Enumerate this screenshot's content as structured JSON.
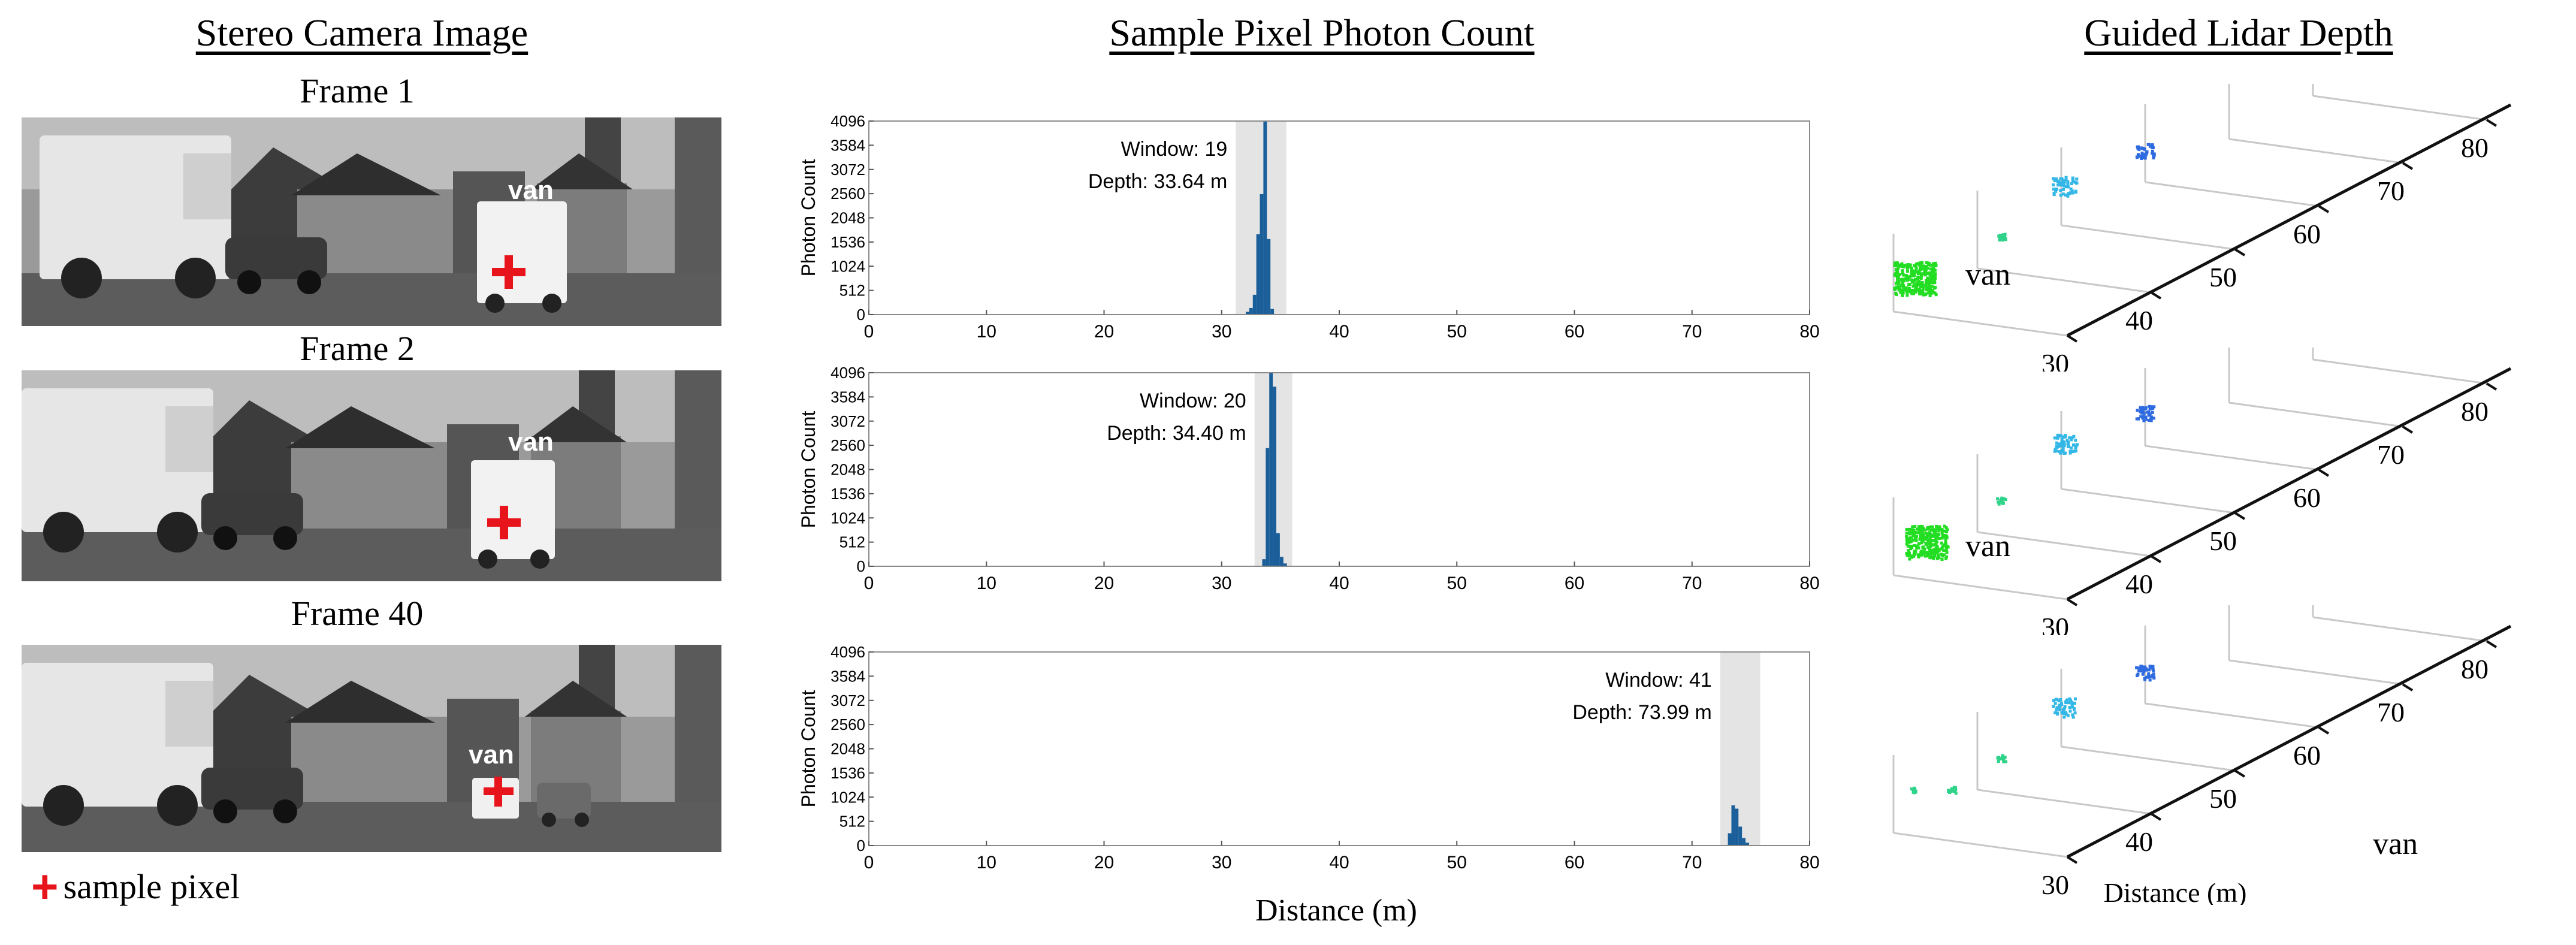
{
  "titles": {
    "stereo": "Stereo Camera Image",
    "photon": "Sample Pixel Photon Count",
    "lidar": "Guided Lidar Depth"
  },
  "frames": [
    {
      "label": "Frame 1",
      "van_label": "van",
      "window_text": "Window: 19",
      "depth_text": "Depth: 33.64 m"
    },
    {
      "label": "Frame 2",
      "van_label": "van",
      "window_text": "Window: 20",
      "depth_text": "Depth: 34.40 m"
    },
    {
      "label": "Frame 40",
      "van_label": "van",
      "window_text": "Window: 41",
      "depth_text": "Depth: 73.99 m"
    }
  ],
  "legend": {
    "label": "sample pixel"
  },
  "colors": {
    "sample_pixel_marker": "#e8141c",
    "histogram_bar": "#1a5e9a",
    "window_shade": "#e4e4e4"
  },
  "lidar_axis_label": "Distance (m)",
  "lidar_ticks": [
    "30",
    "40",
    "50",
    "60",
    "70",
    "80"
  ],
  "lidar_van_label": "van",
  "chart_data": [
    {
      "type": "bar",
      "title": "Frame 1",
      "xlabel": "",
      "ylabel": "Photon Count",
      "xlim": [
        0,
        80
      ],
      "ylim": [
        0,
        4096
      ],
      "xticks": [
        "0",
        "10",
        "20",
        "30",
        "40",
        "50",
        "60",
        "70",
        "80"
      ],
      "yticks": [
        "0",
        "512",
        "1024",
        "1536",
        "2048",
        "2560",
        "3072",
        "3584",
        "4096"
      ],
      "window": [
        31.2,
        35.5
      ],
      "x": [
        32.2,
        32.5,
        32.8,
        33.1,
        33.4,
        33.7,
        34.0,
        34.3
      ],
      "values": [
        60,
        140,
        420,
        1700,
        2550,
        4096,
        1600,
        120
      ],
      "annotation": [
        "Window: 19",
        "Depth: 33.64 m"
      ]
    },
    {
      "type": "bar",
      "title": "Frame 2",
      "xlabel": "",
      "ylabel": "Photon Count",
      "xlim": [
        0,
        80
      ],
      "ylim": [
        0,
        4096
      ],
      "xticks": [
        "0",
        "10",
        "20",
        "30",
        "40",
        "50",
        "60",
        "70",
        "80"
      ],
      "yticks": [
        "0",
        "512",
        "1024",
        "1536",
        "2048",
        "2560",
        "3072",
        "3584",
        "4096"
      ],
      "window": [
        32.8,
        36.0
      ],
      "x": [
        33.6,
        33.9,
        34.2,
        34.5,
        34.8,
        35.1,
        35.4
      ],
      "values": [
        150,
        2500,
        4096,
        3800,
        700,
        200,
        60
      ],
      "annotation": [
        "Window: 20",
        "Depth: 34.40 m"
      ]
    },
    {
      "type": "bar",
      "title": "Frame 40",
      "xlabel": "Distance (m)",
      "ylabel": "Photon Count",
      "xlim": [
        0,
        80
      ],
      "ylim": [
        0,
        4096
      ],
      "xticks": [
        "0",
        "10",
        "20",
        "30",
        "40",
        "50",
        "60",
        "70",
        "80"
      ],
      "yticks": [
        "0",
        "512",
        "1024",
        "1536",
        "2048",
        "2560",
        "3072",
        "3584",
        "4096"
      ],
      "window": [
        72.4,
        75.8
      ],
      "x": [
        73.2,
        73.5,
        73.8,
        74.1,
        74.4,
        74.7
      ],
      "values": [
        260,
        850,
        780,
        400,
        160,
        60
      ],
      "annotation": [
        "Window: 41",
        "Depth: 73.99 m"
      ]
    }
  ]
}
